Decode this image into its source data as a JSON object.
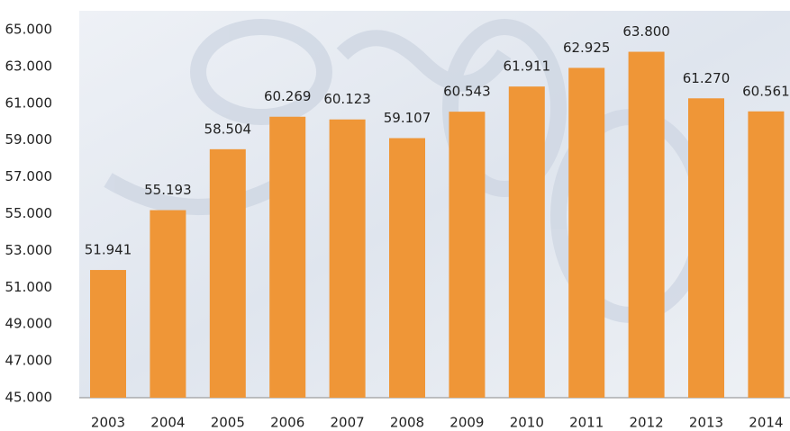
{
  "chart_data": {
    "type": "bar",
    "categories": [
      "2003",
      "2004",
      "2005",
      "2006",
      "2007",
      "2008",
      "2009",
      "2010",
      "2011",
      "2012",
      "2013",
      "2014"
    ],
    "values": [
      51941,
      55193,
      58504,
      60269,
      60123,
      59107,
      60543,
      61911,
      62925,
      63800,
      61270,
      60561
    ],
    "value_labels": [
      "51.941",
      "55.193",
      "58.504",
      "60.269",
      "60.123",
      "59.107",
      "60.543",
      "61.911",
      "62.925",
      "63.800",
      "61.270",
      "60.561"
    ],
    "color": "#ef9637",
    "ylim": [
      45000,
      65000
    ],
    "yticks": [
      {
        "value": 45000,
        "label": "45.000"
      },
      {
        "value": 47000,
        "label": "47.000"
      },
      {
        "value": 49000,
        "label": "49.000"
      },
      {
        "value": 51000,
        "label": "51.000"
      },
      {
        "value": 53000,
        "label": "53.000"
      },
      {
        "value": 55000,
        "label": "55.000"
      },
      {
        "value": 57000,
        "label": "57.000"
      },
      {
        "value": 59000,
        "label": "59.000"
      },
      {
        "value": 61000,
        "label": "61.000"
      },
      {
        "value": 63000,
        "label": "63.000"
      },
      {
        "value": 65000,
        "label": "65.000"
      }
    ],
    "grid": false
  }
}
